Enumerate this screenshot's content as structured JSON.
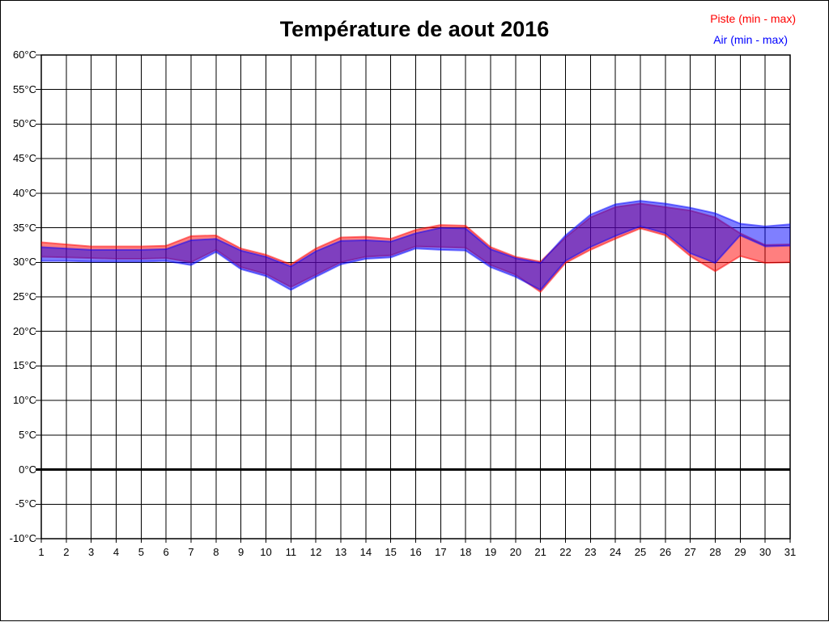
{
  "page": {
    "title": "Température de aout 2016",
    "legend": [
      {
        "label": "Piste (min - max)",
        "color": "#ff0000"
      },
      {
        "label": "Air (min - max)",
        "color": "#0000ff"
      }
    ]
  },
  "chart_data": {
    "type": "area",
    "title": "Température de aout 2016",
    "xlabel": "",
    "ylabel": "",
    "xlim": [
      1,
      31
    ],
    "ylim": [
      -10,
      60
    ],
    "grid": true,
    "zero_line": true,
    "legend_position": "top-right",
    "x": [
      1,
      2,
      3,
      4,
      5,
      6,
      7,
      8,
      9,
      10,
      11,
      12,
      13,
      14,
      15,
      16,
      17,
      18,
      19,
      20,
      21,
      22,
      23,
      24,
      25,
      26,
      27,
      28,
      29,
      30,
      31
    ],
    "ytick_values": [
      60,
      55,
      50,
      45,
      40,
      35,
      30,
      25,
      20,
      15,
      10,
      5,
      0,
      -5,
      -10
    ],
    "ytick_labels": [
      "60°C",
      "55°C",
      "50°C",
      "45°C",
      "40°C",
      "35°C",
      "30°C",
      "25°C",
      "20°C",
      "15°C",
      "10°C",
      "5°C",
      "0°C",
      "-5°C",
      "-10°C"
    ],
    "series": [
      {
        "name": "Piste (min - max)",
        "color": "#ff0000",
        "max": [
          32.9,
          32.6,
          32.3,
          32.3,
          32.3,
          32.4,
          33.8,
          33.9,
          32.0,
          31.1,
          29.7,
          32.0,
          33.6,
          33.7,
          33.4,
          34.7,
          35.4,
          35.3,
          32.2,
          30.8,
          30.1,
          33.6,
          36.5,
          38.0,
          38.5,
          38.0,
          37.5,
          36.5,
          34.2,
          32.5,
          32.6
        ],
        "min": [
          30.8,
          30.7,
          30.6,
          30.5,
          30.5,
          30.6,
          30.0,
          31.8,
          29.3,
          28.3,
          26.4,
          28.2,
          30.0,
          30.8,
          31.0,
          32.3,
          32.2,
          32.1,
          29.6,
          28.2,
          25.7,
          29.9,
          31.8,
          33.4,
          34.9,
          33.9,
          30.9,
          28.7,
          30.9,
          29.9,
          30.0
        ]
      },
      {
        "name": "Air (min - max)",
        "color": "#0000ff",
        "max": [
          32.2,
          32.0,
          31.8,
          31.8,
          31.8,
          31.9,
          33.2,
          33.4,
          31.7,
          30.8,
          29.4,
          31.6,
          33.1,
          33.2,
          33.0,
          34.2,
          35.0,
          34.9,
          31.9,
          30.6,
          29.9,
          33.9,
          36.9,
          38.4,
          38.9,
          38.5,
          37.9,
          37.1,
          35.6,
          35.2,
          35.5
        ],
        "min": [
          30.2,
          30.2,
          30.1,
          30.1,
          30.1,
          30.2,
          29.6,
          31.5,
          29.0,
          28.0,
          26.0,
          27.9,
          29.7,
          30.5,
          30.7,
          32.0,
          31.8,
          31.7,
          29.3,
          27.9,
          26.0,
          30.2,
          32.2,
          33.8,
          35.2,
          34.2,
          31.3,
          29.9,
          33.9,
          32.3,
          32.4
        ]
      }
    ]
  }
}
